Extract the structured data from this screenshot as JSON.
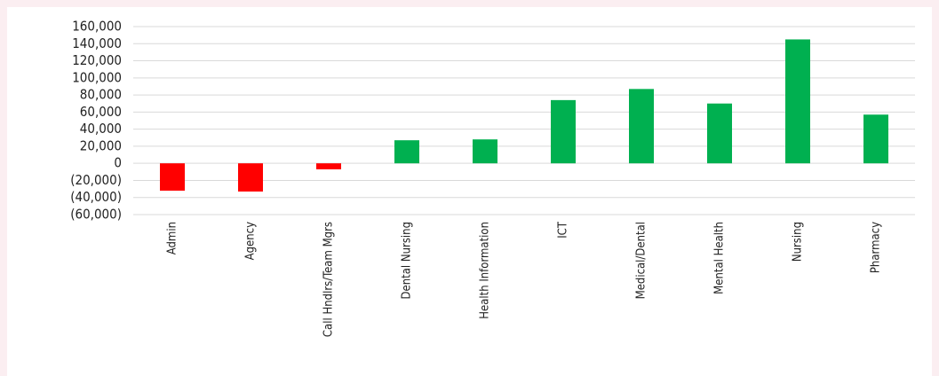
{
  "chart_data": {
    "type": "bar",
    "categories": [
      "Admin",
      "Agency",
      "Call Hndlrs/Team Mgrs",
      "Dental Nursing",
      "Health Information",
      "ICT",
      "Medical/Dental",
      "Mental Health",
      "Nursing",
      "Pharmacy"
    ],
    "values": [
      -32000,
      -33000,
      -7000,
      27000,
      28000,
      74000,
      87000,
      70000,
      145000,
      57000
    ],
    "color": "#00b050",
    "negative_color": "#ff0000",
    "ylim": [
      -60000,
      160000
    ],
    "yticks": [
      {
        "value": -60000,
        "label": "(60,000)"
      },
      {
        "value": -40000,
        "label": "(40,000)"
      },
      {
        "value": -20000,
        "label": "(20,000)"
      },
      0,
      {
        "value": 20000,
        "label": "20,000"
      },
      {
        "value": 40000,
        "label": "40,000"
      },
      {
        "value": 60000,
        "label": "60,000"
      },
      {
        "value": 80000,
        "label": "80,000"
      },
      {
        "value": 100000,
        "label": "100,000"
      },
      {
        "value": 120000,
        "label": "120,000"
      },
      {
        "value": 140000,
        "label": "140,000"
      },
      {
        "value": 160000,
        "label": "160,000"
      }
    ],
    "grid": true
  }
}
